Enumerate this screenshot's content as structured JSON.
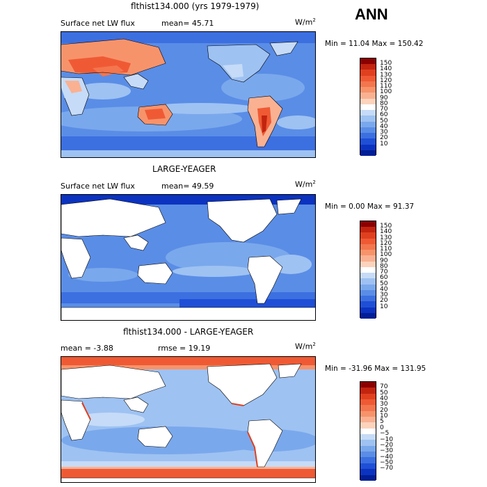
{
  "season": "ANN",
  "panels": [
    {
      "id": "top",
      "title": "flthist134.000 (yrs 1979-1979)",
      "subtitle_left": "Surface net LW flux",
      "subtitle_mid": "mean=  45.71",
      "units": "W/m",
      "units_sup": "2",
      "minmax": "Min =  11.04 Max = 150.42",
      "colorbar_labels": [
        "150",
        "140",
        "130",
        "120",
        "110",
        "100",
        "90",
        "80",
        "70",
        "60",
        "50",
        "40",
        "30",
        "20",
        "10"
      ],
      "colorbar_colors": [
        "#8b0000",
        "#c2240f",
        "#e0401f",
        "#ef5a34",
        "#f3764e",
        "#f7936b",
        "#f9b192",
        "#fcd3bd",
        "#ffffff",
        "#c6dbf7",
        "#9ec2f2",
        "#7aa8ec",
        "#5a8de6",
        "#3c6fe0",
        "#1f4fd6",
        "#0b33c0",
        "#001e96"
      ]
    },
    {
      "id": "middle",
      "title": "LARGE-YEAGER",
      "subtitle_left": "Surface net LW flux",
      "subtitle_mid": "mean=  49.59",
      "units": "W/m",
      "units_sup": "2",
      "minmax": "Min =   0.00 Max =  91.37",
      "colorbar_labels": [
        "150",
        "140",
        "130",
        "120",
        "110",
        "100",
        "90",
        "80",
        "70",
        "60",
        "50",
        "40",
        "30",
        "20",
        "10"
      ],
      "colorbar_colors": [
        "#8b0000",
        "#c2240f",
        "#e0401f",
        "#ef5a34",
        "#f3764e",
        "#f7936b",
        "#f9b192",
        "#fcd3bd",
        "#ffffff",
        "#c6dbf7",
        "#9ec2f2",
        "#7aa8ec",
        "#5a8de6",
        "#3c6fe0",
        "#1f4fd6",
        "#0b33c0",
        "#001e96"
      ]
    },
    {
      "id": "bottom",
      "title": "flthist134.000 - LARGE-YEAGER",
      "subtitle_left": "mean =  -3.88",
      "subtitle_mid": "rmse =  19.19",
      "units": "W/m",
      "units_sup": "2",
      "minmax": "Min = -31.96 Max = 131.95",
      "colorbar_labels": [
        "70",
        "50",
        "40",
        "30",
        "20",
        "10",
        "5",
        "0",
        "−5",
        "−10",
        "−20",
        "−30",
        "−40",
        "−50",
        "−70"
      ],
      "colorbar_colors": [
        "#8b0000",
        "#c2240f",
        "#e0401f",
        "#ef5a34",
        "#f3764e",
        "#f7936b",
        "#f9b192",
        "#fcd3bd",
        "#ffffff",
        "#c6dbf7",
        "#9ec2f2",
        "#7aa8ec",
        "#5a8de6",
        "#3c6fe0",
        "#1f4fd6",
        "#0b33c0",
        "#001e96"
      ]
    }
  ]
}
